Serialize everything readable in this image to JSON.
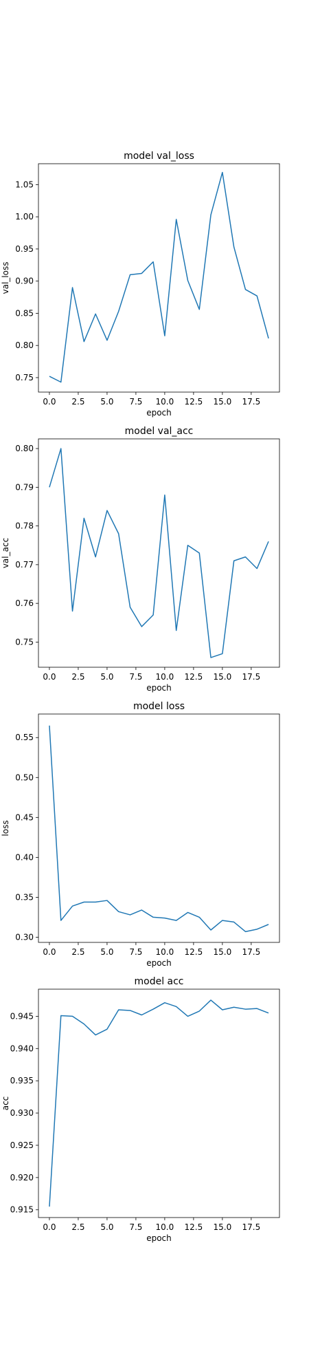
{
  "chart_data": [
    {
      "type": "line",
      "title": "model val_loss",
      "xlabel": "epoch",
      "ylabel": "val_loss",
      "xlim": [
        -0.95,
        19.95
      ],
      "ylim": [
        0.7275,
        1.0825
      ],
      "xticks": [
        0.0,
        2.5,
        5.0,
        7.5,
        10.0,
        12.5,
        15.0,
        17.5
      ],
      "yticks": [
        0.75,
        0.8,
        0.85,
        0.9,
        0.95,
        1.0,
        1.05
      ],
      "grid": false,
      "series_color": "#1f77b4",
      "x": [
        0,
        1,
        2,
        3,
        4,
        5,
        6,
        7,
        8,
        9,
        10,
        11,
        12,
        13,
        14,
        15,
        16,
        17,
        18,
        19
      ],
      "values": [
        0.752,
        0.743,
        0.89,
        0.806,
        0.849,
        0.808,
        0.853,
        0.91,
        0.912,
        0.93,
        0.815,
        0.996,
        0.901,
        0.856,
        1.003,
        1.069,
        0.953,
        0.887,
        0.877,
        0.811
      ]
    },
    {
      "type": "line",
      "title": "model val_acc",
      "xlabel": "epoch",
      "ylabel": "val_acc",
      "xlim": [
        -0.95,
        19.95
      ],
      "ylim": [
        0.7435,
        0.8025
      ],
      "xticks": [
        0.0,
        2.5,
        5.0,
        7.5,
        10.0,
        12.5,
        15.0,
        17.5
      ],
      "yticks": [
        0.75,
        0.76,
        0.77,
        0.78,
        0.79,
        0.8
      ],
      "grid": false,
      "series_color": "#1f77b4",
      "x": [
        0,
        1,
        2,
        3,
        4,
        5,
        6,
        7,
        8,
        9,
        10,
        11,
        12,
        13,
        14,
        15,
        16,
        17,
        18,
        19
      ],
      "values": [
        0.79,
        0.8,
        0.758,
        0.782,
        0.772,
        0.784,
        0.778,
        0.759,
        0.754,
        0.757,
        0.788,
        0.753,
        0.775,
        0.773,
        0.746,
        0.747,
        0.771,
        0.772,
        0.769,
        0.776
      ]
    },
    {
      "type": "line",
      "title": "model loss",
      "xlabel": "epoch",
      "ylabel": "loss",
      "xlim": [
        -0.95,
        19.95
      ],
      "ylim": [
        0.2935,
        0.5795
      ],
      "xticks": [
        0.0,
        2.5,
        5.0,
        7.5,
        10.0,
        12.5,
        15.0,
        17.5
      ],
      "yticks": [
        0.3,
        0.35,
        0.4,
        0.45,
        0.5,
        0.55
      ],
      "grid": false,
      "series_color": "#1f77b4",
      "x": [
        0,
        1,
        2,
        3,
        4,
        5,
        6,
        7,
        8,
        9,
        10,
        11,
        12,
        13,
        14,
        15,
        16,
        17,
        18,
        19
      ],
      "values": [
        0.565,
        0.321,
        0.339,
        0.344,
        0.344,
        0.346,
        0.332,
        0.328,
        0.334,
        0.325,
        0.324,
        0.321,
        0.331,
        0.325,
        0.309,
        0.321,
        0.319,
        0.307,
        0.31,
        0.316
      ]
    },
    {
      "type": "line",
      "title": "model acc",
      "xlabel": "epoch",
      "ylabel": "acc",
      "xlim": [
        -0.95,
        19.95
      ],
      "ylim": [
        0.9138,
        0.9492
      ],
      "xticks": [
        0.0,
        2.5,
        5.0,
        7.5,
        10.0,
        12.5,
        15.0,
        17.5
      ],
      "yticks": [
        0.915,
        0.92,
        0.925,
        0.93,
        0.935,
        0.94,
        0.945
      ],
      "grid": false,
      "series_color": "#1f77b4",
      "x": [
        0,
        1,
        2,
        3,
        4,
        5,
        6,
        7,
        8,
        9,
        10,
        11,
        12,
        13,
        14,
        15,
        16,
        17,
        18,
        19
      ],
      "values": [
        0.9155,
        0.9451,
        0.945,
        0.9438,
        0.9421,
        0.943,
        0.946,
        0.9459,
        0.9452,
        0.9461,
        0.9471,
        0.9465,
        0.945,
        0.9458,
        0.9475,
        0.946,
        0.9464,
        0.9461,
        0.9462,
        0.9455
      ]
    }
  ]
}
